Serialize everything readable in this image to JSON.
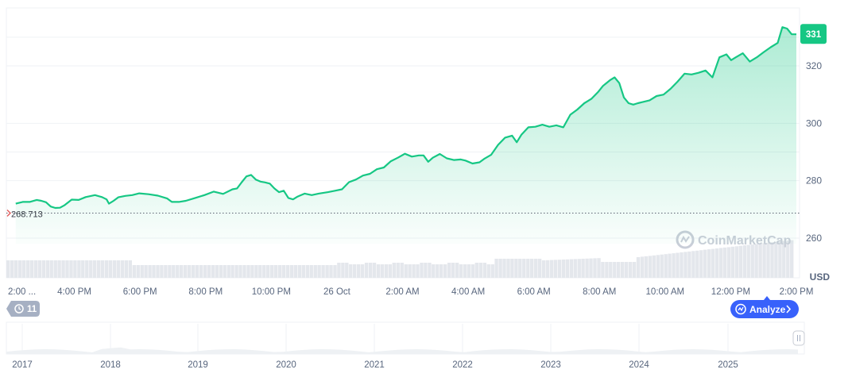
{
  "chart_data": {
    "type": "area",
    "currency_label": "USD",
    "current_price_label": "331",
    "reference_price_label": "268.713",
    "reference_price": 268.713,
    "watermark": "CoinMarketCap",
    "analyze_label": "Analyze",
    "history_count": "11",
    "ylim": [
      248,
      340
    ],
    "y_ticks": [
      "260",
      "280",
      "300",
      "320"
    ],
    "y_tick_values": [
      260,
      280,
      300,
      320
    ],
    "x_tick_labels": [
      "2:00 ...",
      "4:00 PM",
      "6:00 PM",
      "8:00 PM",
      "10:00 PM",
      "26 Oct",
      "2:00 AM",
      "4:00 AM",
      "6:00 AM",
      "8:00 AM",
      "10:00 AM",
      "12:00 PM",
      "2:00 PM"
    ],
    "x_hours": [
      0,
      2,
      4,
      6,
      8,
      10,
      12,
      14,
      16,
      18,
      20,
      22,
      24
    ],
    "navigator_years": [
      "2017",
      "2018",
      "2019",
      "2020",
      "2021",
      "2022",
      "2023",
      "2024",
      "2025"
    ],
    "colors": {
      "line": "#16c784",
      "fill": "#16c784",
      "volume": "#e4e7ec",
      "analyze": "#3861fb",
      "pill_gray": "#a6b0c3",
      "watermark": "#c9ced8"
    },
    "series": [
      {
        "values": [
          [
            0.3,
            272.0
          ],
          [
            0.6,
            272.6
          ],
          [
            0.9,
            272.6
          ],
          [
            1.2,
            273.3
          ],
          [
            1.4,
            273.0
          ],
          [
            1.6,
            272.5
          ],
          [
            1.8,
            271.0
          ],
          [
            2.0,
            270.5
          ],
          [
            2.2,
            270.6
          ],
          [
            2.4,
            271.5
          ],
          [
            2.7,
            273.4
          ],
          [
            3.0,
            273.3
          ],
          [
            3.3,
            274.3
          ],
          [
            3.7,
            275.0
          ],
          [
            4.0,
            274.3
          ],
          [
            4.2,
            273.5
          ],
          [
            4.3,
            272.0
          ],
          [
            4.5,
            273.0
          ],
          [
            4.7,
            274.2
          ],
          [
            5.0,
            274.7
          ],
          [
            5.3,
            275.0
          ],
          [
            5.6,
            275.6
          ],
          [
            6.0,
            275.3
          ],
          [
            6.4,
            274.8
          ],
          [
            6.8,
            273.8
          ],
          [
            7.0,
            272.6
          ],
          [
            7.3,
            272.6
          ],
          [
            7.6,
            273.0
          ],
          [
            8.0,
            274.0
          ],
          [
            8.4,
            275.0
          ],
          [
            8.8,
            276.2
          ],
          [
            9.2,
            275.4
          ],
          [
            9.6,
            277.0
          ],
          [
            9.8,
            277.3
          ],
          [
            10.0,
            279.5
          ],
          [
            10.2,
            281.5
          ],
          [
            10.4,
            282.0
          ],
          [
            10.6,
            280.4
          ],
          [
            10.8,
            279.7
          ],
          [
            11.0,
            279.4
          ],
          [
            11.2,
            279.0
          ],
          [
            11.4,
            277.3
          ],
          [
            11.6,
            276.0
          ],
          [
            11.8,
            276.5
          ],
          [
            12.0,
            274.0
          ],
          [
            12.2,
            273.5
          ],
          [
            12.4,
            274.5
          ],
          [
            12.7,
            275.5
          ],
          [
            13.0,
            275.0
          ],
          [
            13.3,
            275.5
          ],
          [
            13.7,
            276.0
          ],
          [
            14.0,
            276.5
          ],
          [
            14.3,
            277.0
          ],
          [
            14.6,
            279.5
          ],
          [
            14.9,
            280.4
          ],
          [
            15.2,
            281.8
          ],
          [
            15.5,
            282.4
          ],
          [
            15.8,
            284.0
          ],
          [
            16.1,
            284.6
          ],
          [
            16.4,
            286.8
          ],
          [
            16.7,
            288.0
          ],
          [
            17.0,
            289.4
          ],
          [
            17.3,
            288.4
          ],
          [
            17.6,
            288.8
          ],
          [
            17.8,
            288.8
          ],
          [
            18.0,
            286.6
          ],
          [
            18.2,
            288.0
          ],
          [
            18.5,
            289.3
          ],
          [
            18.8,
            287.8
          ],
          [
            19.1,
            287.2
          ],
          [
            19.4,
            287.4
          ],
          [
            19.6,
            287.0
          ],
          [
            19.9,
            286.0
          ],
          [
            20.2,
            286.4
          ],
          [
            20.4,
            287.6
          ],
          [
            20.7,
            289.0
          ],
          [
            21.0,
            292.5
          ],
          [
            21.3,
            295.0
          ],
          [
            21.6,
            295.7
          ],
          [
            21.8,
            293.4
          ],
          [
            22.0,
            296.0
          ],
          [
            22.3,
            298.6
          ],
          [
            22.6,
            298.8
          ],
          [
            22.9,
            299.5
          ],
          [
            23.2,
            298.8
          ],
          [
            23.5,
            299.3
          ],
          [
            23.8,
            298.6
          ],
          [
            24.1,
            303.0
          ],
          [
            24.4,
            304.8
          ],
          [
            24.7,
            307.0
          ],
          [
            25.0,
            308.5
          ],
          [
            25.3,
            311.0
          ],
          [
            25.5,
            313.0
          ],
          [
            25.8,
            315.0
          ],
          [
            26.0,
            316.0
          ],
          [
            26.2,
            314.0
          ],
          [
            26.4,
            309.0
          ],
          [
            26.6,
            307.0
          ],
          [
            26.8,
            306.5
          ],
          [
            27.0,
            307.0
          ],
          [
            27.2,
            307.4
          ],
          [
            27.5,
            308.0
          ],
          [
            27.8,
            309.5
          ],
          [
            28.1,
            310.0
          ],
          [
            28.4,
            312.0
          ],
          [
            28.7,
            314.5
          ],
          [
            29.0,
            317.3
          ],
          [
            29.3,
            317.0
          ],
          [
            29.6,
            317.6
          ],
          [
            29.9,
            318.4
          ],
          [
            30.2,
            316.0
          ],
          [
            30.5,
            323.0
          ],
          [
            30.8,
            324.0
          ],
          [
            31.0,
            322.0
          ],
          [
            31.2,
            323.0
          ],
          [
            31.5,
            324.4
          ],
          [
            31.8,
            321.5
          ],
          [
            32.1,
            323.0
          ],
          [
            32.4,
            324.8
          ],
          [
            32.7,
            326.5
          ],
          [
            33.0,
            328.0
          ],
          [
            33.2,
            333.5
          ],
          [
            33.4,
            333.0
          ],
          [
            33.6,
            331.0
          ],
          [
            33.8,
            331.0
          ]
        ]
      }
    ]
  }
}
